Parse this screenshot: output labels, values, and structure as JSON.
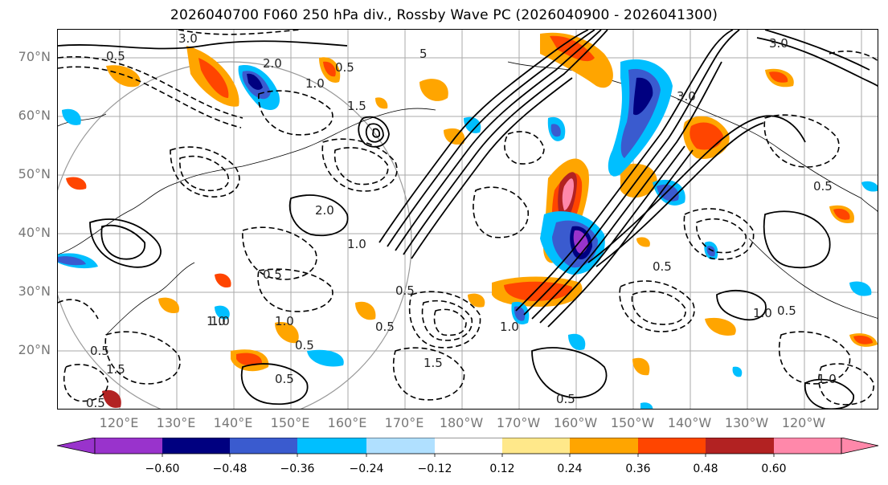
{
  "title": "2026040700 F060 250 hPa div., Rossby Wave PC (2026040900 - 2026041300)",
  "lat_labels": [
    "70°N",
    "60°N",
    "50°N",
    "40°N",
    "30°N",
    "20°N"
  ],
  "lon_labels": [
    "120°E",
    "130°E",
    "140°E",
    "150°E",
    "160°E",
    "170°E",
    "180°W",
    "170°W",
    "160°W",
    "150°W",
    "140°W",
    "130°W",
    "120°W"
  ],
  "colorbar": {
    "colors": [
      "#9933cc",
      "#000080",
      "#3a5bcf",
      "#00bfff",
      "#b0e0ff",
      "#ffffff",
      "#ffe88a",
      "#ffa500",
      "#ff4500",
      "#b22222",
      "#ff88aa"
    ],
    "ticks": [
      "−0.60",
      "−0.48",
      "−0.36",
      "−0.24",
      "−0.12",
      "0.12",
      "0.24",
      "0.36",
      "0.48",
      "0.60"
    ]
  },
  "contour_labels": [
    "3.0",
    "2.0",
    "1.0",
    "0.5",
    "0.5",
    "1.5",
    "3.0",
    "3.0",
    "5",
    "2.0",
    "1.0",
    "0.5",
    "0.5",
    "1.0",
    "1.5",
    "0.5",
    "0.5",
    "1.0",
    "0.5",
    "1.5",
    "0.5",
    "1.0",
    "0.5",
    "0.5",
    "0.5",
    "1.0",
    "1.0",
    "0.5",
    "0.5",
    "1.0"
  ]
}
